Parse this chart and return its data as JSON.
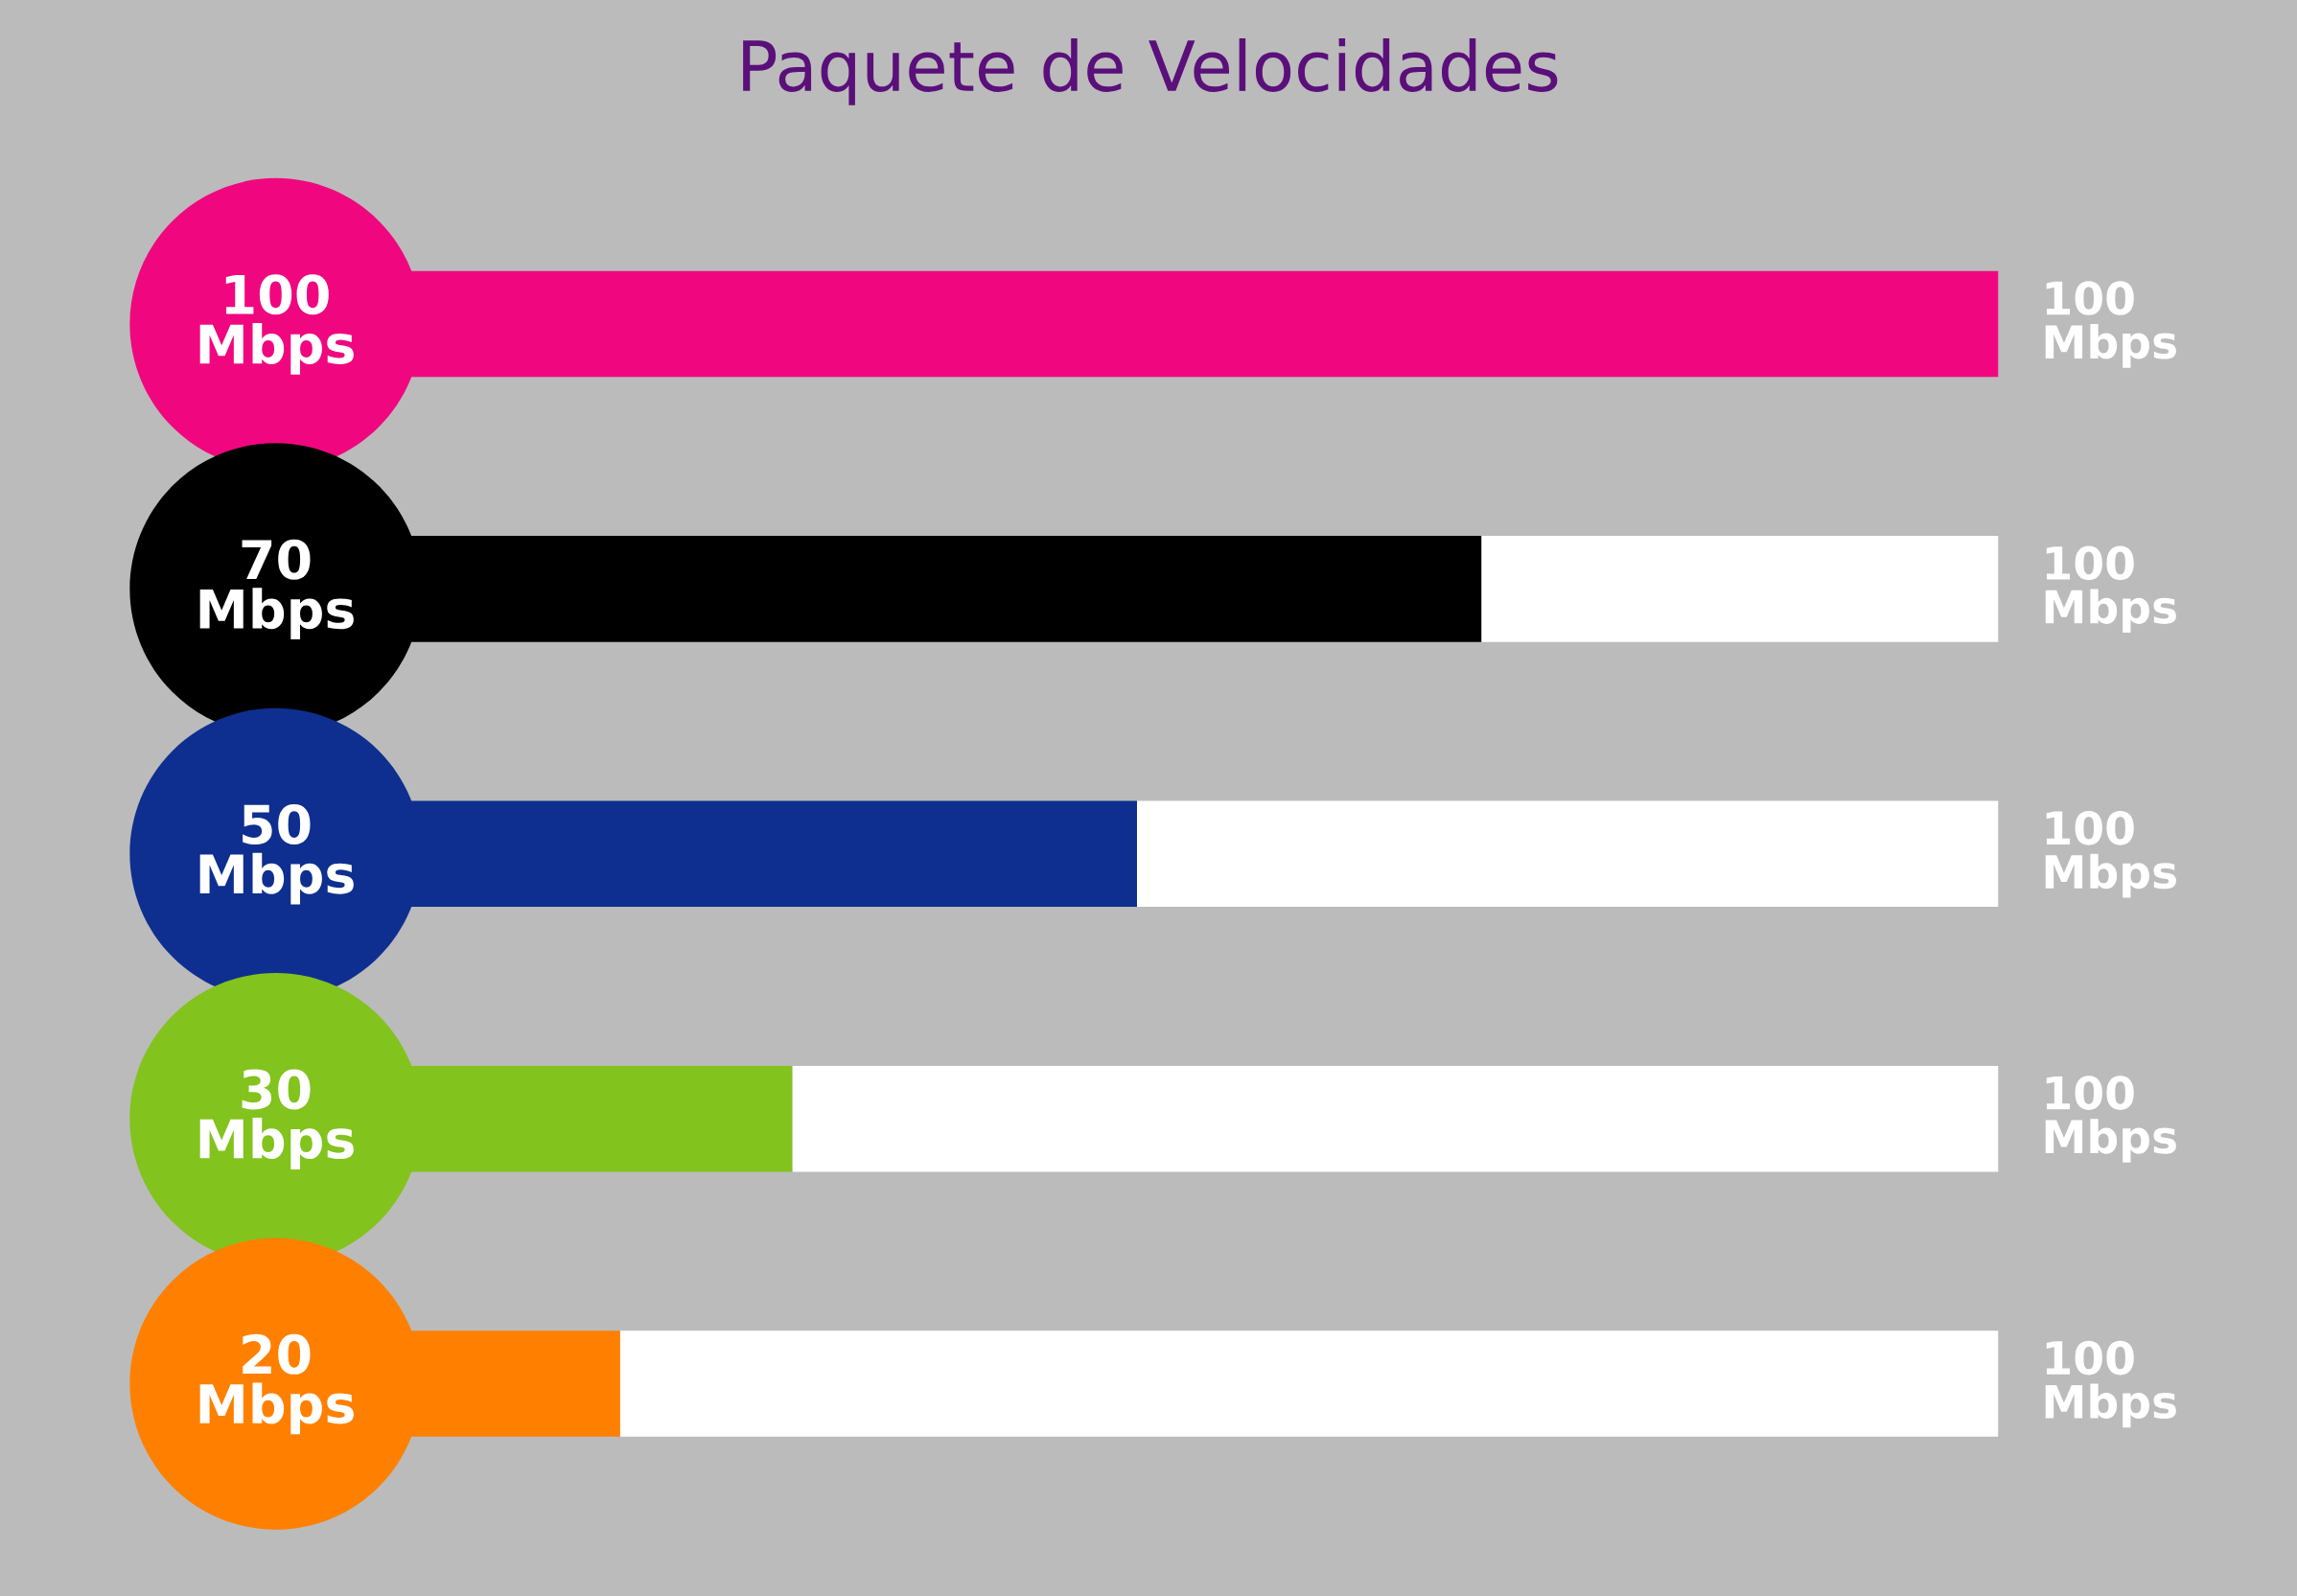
{
  "chart_data": {
    "type": "bar",
    "orientation": "horizontal",
    "stacked": true,
    "title": "Paquete de Velocidades",
    "categories": [
      null,
      null,
      null,
      null,
      null
    ],
    "series": [
      {
        "colors": [
          "#f0077f",
          "#000000",
          "#0e2f8f",
          "#82c31d",
          "#ff8000"
        ],
        "values": [
          100,
          70,
          50,
          30,
          20
        ],
        "value_labels": [
          "100\nMbps",
          "70\nMbps",
          "50\nMbps",
          "30\nMbps",
          "20\nMbps"
        ]
      },
      {
        "color": "#ffffff",
        "values": [
          0,
          30,
          50,
          70,
          80
        ]
      }
    ],
    "totals": [
      "100\nMbps",
      "100\nMbps",
      "100\nMbps",
      "100\nMbps",
      "100\nMbps"
    ],
    "grid": false,
    "legend": false
  }
}
